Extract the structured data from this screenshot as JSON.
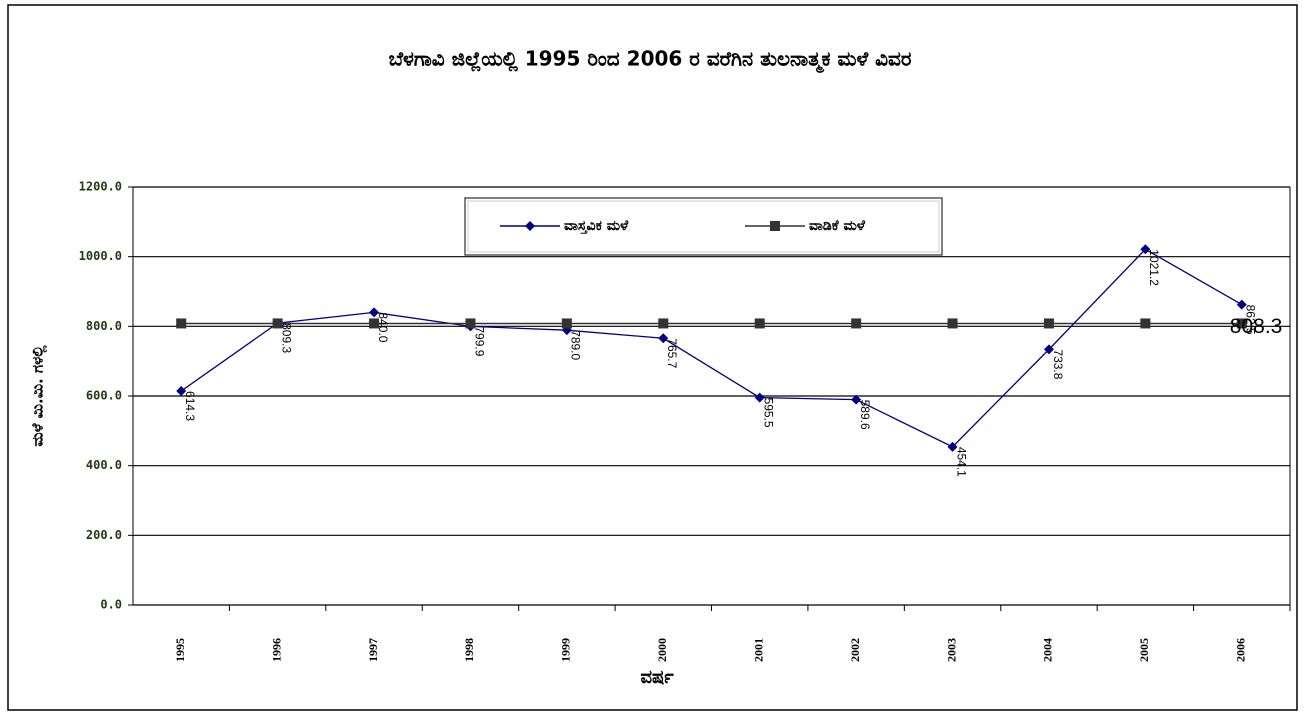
{
  "chart_data": {
    "type": "line",
    "title": "ಬೆಳಗಾವಿ ಜಿಲ್ಲೆಯಲ್ಲಿ 1995 ರಿಂದ 2006 ರ ವರೆಗಿನ ತುಲನಾತ್ಮಕ ಮಳೆ ವಿವರ",
    "y_label": "ಮಳೆ ಮಿ.ಮಿ. ಗಳಲ್ಲಿ",
    "x_label": "ವರ್ಷ",
    "categories": [
      "1995",
      "1996",
      "1997",
      "1998",
      "1999",
      "2000",
      "2001",
      "2002",
      "2003",
      "2004",
      "2005",
      "2006"
    ],
    "series": [
      {
        "name": "ವಾಸ್ತವಿಕ ಮಳೆ",
        "color": "#000080",
        "marker": "diamond",
        "values": [
          614.3,
          809.3,
          840.0,
          799.9,
          789.0,
          765.7,
          595.5,
          589.6,
          454.1,
          733.8,
          1021.2,
          862.5
        ],
        "value_labels": [
          "614.3",
          "809.3",
          "840.0",
          "799.9",
          "789.0",
          "765.7",
          "595.5",
          "589.6",
          "454.1",
          "733.8",
          "1021.2",
          "862.5"
        ]
      },
      {
        "name": "ವಾಡಿಕೆ ಮಳೆ",
        "color": "#333333",
        "marker": "square",
        "values": [
          808.3,
          808.3,
          808.3,
          808.3,
          808.3,
          808.3,
          808.3,
          808.3,
          808.3,
          808.3,
          808.3,
          808.3
        ],
        "value_labels": [
          null,
          null,
          null,
          null,
          null,
          null,
          null,
          null,
          null,
          null,
          null,
          "808.3"
        ]
      }
    ],
    "ylim": [
      0,
      1200
    ],
    "yticks": [
      {
        "value": 0,
        "label": "0.0"
      },
      {
        "value": 200,
        "label": "200.0"
      },
      {
        "value": 400,
        "label": "400.0"
      },
      {
        "value": 600,
        "label": "600.0"
      },
      {
        "value": 800,
        "label": "800.0"
      },
      {
        "value": 1000,
        "label": "1000.0"
      },
      {
        "value": 1200,
        "label": "1200.0"
      }
    ],
    "grid": true
  }
}
